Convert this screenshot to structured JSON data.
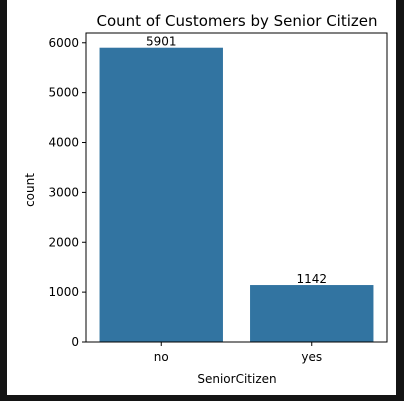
{
  "chart_data": {
    "type": "bar",
    "title": "Count of Customers by Senior Citizen",
    "xlabel": "SeniorCitizen",
    "ylabel": "count",
    "categories": [
      "no",
      "yes"
    ],
    "values": [
      5901,
      1142
    ],
    "data_labels": [
      "5901",
      "1142"
    ],
    "yticks": [
      0,
      1000,
      2000,
      3000,
      4000,
      5000,
      6000
    ],
    "ylim": [
      0,
      6196
    ],
    "grid": false,
    "bar_color": "#3274a1"
  }
}
